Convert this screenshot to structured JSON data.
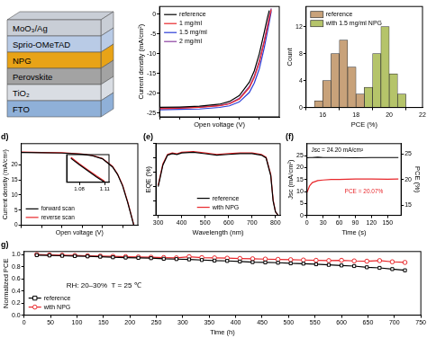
{
  "diagram": {
    "layers": [
      {
        "label": "MoO₃/Ag",
        "color": "#c9ced6"
      },
      {
        "label": "Sprio-OMeTAD",
        "color": "#b9cbe6"
      },
      {
        "label": "NPG",
        "color": "#e8a317"
      },
      {
        "label": "Perovskite",
        "color": "#a3a3a3"
      },
      {
        "label": "TiO₂",
        "color": "#d9dde3"
      },
      {
        "label": "FTO",
        "color": "#8fb0d8"
      }
    ]
  },
  "chart_data": [
    {
      "type": "line",
      "x_label": "Open voltage (V)",
      "y_label": "Current density (mA/cm²)",
      "x": [
        0,
        0.2,
        0.4,
        0.6,
        0.7,
        0.8,
        0.9,
        0.95,
        1.0,
        1.05,
        1.08,
        1.1,
        1.12
      ],
      "series": [
        {
          "name": "reference",
          "color": "#000000",
          "values": [
            -23.6,
            -23.5,
            -23.3,
            -22.8,
            -22.1,
            -20.6,
            -17.2,
            -14.3,
            -10.0,
            -4.5,
            -1.0,
            1.0,
            null
          ]
        },
        {
          "name": "1 mg/ml",
          "color": "#e8262a",
          "values": [
            -23.9,
            -23.8,
            -23.6,
            -23.2,
            -22.7,
            -21.5,
            -18.6,
            -16.0,
            -12.2,
            -7.0,
            -3.4,
            -1.0,
            1.2
          ]
        },
        {
          "name": "1.5 mg/ml",
          "color": "#2a3bd6",
          "values": [
            -24.2,
            -24.1,
            -24.0,
            -23.6,
            -23.2,
            -22.2,
            -19.8,
            -17.4,
            -13.8,
            -8.4,
            -4.6,
            -2.0,
            0.8
          ]
        },
        {
          "name": "2 mg/ml",
          "color": "#8b3fa0",
          "values": [
            -23.8,
            -23.7,
            -23.5,
            -23.1,
            -22.6,
            -21.3,
            -18.3,
            -15.6,
            -11.8,
            -6.6,
            -3.0,
            -0.5,
            1.5
          ]
        }
      ],
      "xlim": [
        0,
        1.2
      ],
      "xticks": [
        0,
        0.2,
        0.4,
        0.6,
        0.8,
        1
      ],
      "ylim": [
        -26,
        2
      ],
      "yticks": [
        -25,
        -20,
        -15,
        -10,
        -5,
        0
      ],
      "grid": false,
      "legend": "upper left",
      "tick_labels": "y"
    },
    {
      "type": "histogram",
      "x_label": "PCE (%)",
      "y_label": "Count",
      "bins": [
        15.5,
        16,
        16.5,
        17,
        17.5,
        18,
        18.5,
        19,
        19.5,
        20,
        20.5,
        21
      ],
      "series": [
        {
          "name": "reference",
          "color": "#c8a27a",
          "values": [
            1,
            4,
            8,
            10,
            6,
            2,
            0,
            0,
            0,
            0,
            0
          ]
        },
        {
          "name": "with 1.5 mg/ml NPG",
          "color": "#b5c46a",
          "values": [
            0,
            0,
            0,
            0,
            0,
            1,
            3,
            8,
            12,
            5,
            2
          ]
        }
      ],
      "xlim": [
        15,
        22
      ],
      "xticks": [
        16,
        18,
        20,
        22
      ],
      "ylim": [
        0,
        15
      ],
      "yticks": [
        0,
        4,
        8,
        12
      ],
      "grid": false,
      "legend": "upper left"
    },
    {
      "type": "line",
      "title": "d)",
      "x_label": "Open voltage (V)",
      "y_label": "Current density (mA/cm²)",
      "x": [
        0,
        0.2,
        0.4,
        0.6,
        0.7,
        0.8,
        0.9,
        0.95,
        1.0,
        1.05,
        1.08,
        1.11
      ],
      "series": [
        {
          "name": "forward scan",
          "color": "#000000",
          "values": [
            24.1,
            24.0,
            23.9,
            23.5,
            23.0,
            22.0,
            19.3,
            16.8,
            13.0,
            7.5,
            3.8,
            0
          ]
        },
        {
          "name": "reverse scan",
          "color": "#e8262a",
          "values": [
            24.2,
            24.1,
            24.0,
            23.6,
            23.1,
            22.1,
            19.5,
            17.0,
            13.3,
            7.8,
            4.0,
            0.2
          ]
        }
      ],
      "xlim": [
        0,
        1.15
      ],
      "xticks": [
        0,
        0.2,
        0.4,
        0.6,
        0.8,
        1
      ],
      "ylim": [
        0,
        27
      ],
      "yticks": [
        0,
        5,
        10,
        15,
        20
      ],
      "grid": false,
      "legend": "lower left",
      "tick_labels": "y"
    },
    {
      "type": "line",
      "x": [
        1.07,
        1.08,
        1.09,
        1.1,
        1.11
      ],
      "series": [
        {
          "name": "forward scan",
          "color": "#000000",
          "values": [
            2.6,
            1.9,
            1.25,
            0.6,
            0.0
          ]
        },
        {
          "name": "reverse scan",
          "color": "#e8262a",
          "values": [
            2.7,
            2.0,
            1.35,
            0.7,
            0.1
          ]
        }
      ],
      "xlim": [
        1.065,
        1.115
      ],
      "xticks": [
        1.08,
        1.11
      ],
      "ylim": [
        0,
        3
      ],
      "yticks": [],
      "grid": false,
      "tick_labels": "x"
    },
    {
      "type": "line",
      "title": "(e)",
      "x_label": "Wavelength (nm)",
      "y_label": "EQE (%)",
      "x": [
        300,
        320,
        340,
        360,
        380,
        400,
        450,
        500,
        550,
        600,
        650,
        700,
        740,
        760,
        780,
        790,
        800,
        810
      ],
      "series": [
        {
          "name": "reference",
          "color": "#000000",
          "values": [
            40,
            70,
            84,
            86,
            85,
            87,
            88,
            86,
            84,
            85,
            86,
            86,
            84,
            80,
            55,
            20,
            5,
            1
          ]
        },
        {
          "name": "with NPG",
          "color": "#e8262a",
          "values": [
            42,
            72,
            85,
            87,
            86,
            88,
            89,
            87,
            85,
            86,
            87,
            87,
            85,
            81,
            57,
            22,
            5,
            1
          ]
        }
      ],
      "xlim": [
        290,
        820
      ],
      "xticks": [
        300,
        400,
        500,
        600,
        700,
        800
      ],
      "ylim": [
        0,
        100
      ],
      "yticks": [
        0,
        20,
        40,
        60,
        80,
        100
      ],
      "grid": false,
      "legend": "lower center",
      "tick_labels": "x"
    },
    {
      "type": "line",
      "title": "(f)",
      "x_label": "Time (s)",
      "y_label": "Jsc (mA/cm²)",
      "y2_label": "PCE (%)",
      "x": [
        0,
        5,
        10,
        20,
        30,
        45,
        60,
        90,
        120,
        150,
        170
      ],
      "series": [
        {
          "name": "Jsc",
          "color": "#000000",
          "values": [
            24.1,
            24.2,
            24.2,
            24.3,
            24.2,
            24.2,
            24.2,
            24.1,
            24.2,
            24.2,
            24.2
          ]
        },
        {
          "name": "PCE",
          "color": "#e8262a",
          "axis": "y2",
          "values": [
            17.5,
            18.8,
            19.4,
            19.8,
            19.9,
            20.0,
            20.0,
            20.1,
            20.1,
            20.07,
            20.1
          ]
        }
      ],
      "xlim": [
        0,
        175
      ],
      "xticks": [
        0,
        30,
        60,
        90,
        120,
        150
      ],
      "ylim": [
        0,
        30
      ],
      "yticks": [
        0,
        5,
        10,
        15,
        20,
        25
      ],
      "y2lim": [
        13,
        27
      ],
      "y2ticks": [
        15,
        20,
        25
      ],
      "annotations": [
        {
          "text": "Jsc = 24.20 mA/cm²",
          "x": 8,
          "y": 26.5,
          "color": "#000000"
        },
        {
          "text": "PCE = 20.07%",
          "x": 70,
          "y": 17.3,
          "axis": "y2",
          "color": "#e8262a"
        }
      ],
      "grid": false
    },
    {
      "type": "line",
      "title": "g)",
      "x_label": "Time (h)",
      "y_label": "Normalized PCE",
      "x": [
        24,
        48,
        72,
        96,
        120,
        144,
        168,
        192,
        216,
        240,
        264,
        288,
        312,
        336,
        360,
        384,
        408,
        432,
        456,
        480,
        504,
        528,
        552,
        576,
        600,
        624,
        648,
        672,
        696,
        720
      ],
      "series": [
        {
          "name": "reference",
          "color": "#000000",
          "marker": "square",
          "values": [
            0.99,
            0.985,
            0.98,
            0.975,
            0.97,
            0.965,
            0.955,
            0.95,
            0.945,
            0.94,
            0.93,
            0.925,
            0.92,
            0.91,
            0.9,
            0.895,
            0.885,
            0.875,
            0.87,
            0.865,
            0.855,
            0.85,
            0.84,
            0.83,
            0.82,
            0.81,
            0.79,
            0.78,
            0.76,
            0.74
          ]
        },
        {
          "name": "with NPG",
          "color": "#e8262a",
          "marker": "circle",
          "values": [
            1.0,
            0.995,
            0.99,
            0.985,
            0.98,
            0.975,
            0.97,
            0.965,
            0.96,
            0.955,
            0.95,
            0.945,
            0.965,
            0.95,
            0.945,
            0.94,
            0.935,
            0.93,
            0.925,
            0.92,
            0.915,
            0.91,
            0.905,
            0.9,
            0.905,
            0.895,
            0.89,
            0.9,
            0.88,
            0.87
          ]
        }
      ],
      "xlim": [
        0,
        750
      ],
      "xticks": [
        0,
        50,
        100,
        150,
        200,
        250,
        300,
        350,
        400,
        450,
        500,
        550,
        600,
        650,
        700,
        750
      ],
      "ylim": [
        0,
        1.05
      ],
      "yticks": [
        {
          "value": 0,
          "label": "0.0"
        },
        0.2,
        0.4,
        0.6,
        0.8,
        {
          "value": 1,
          "label": "1.0"
        }
      ],
      "annotations": [
        {
          "text": "RH: 20–30%  T = 25 ℃",
          "x": 80,
          "y": 0.45,
          "color": "#000000"
        }
      ],
      "grid": false,
      "legend": "lower left"
    }
  ]
}
